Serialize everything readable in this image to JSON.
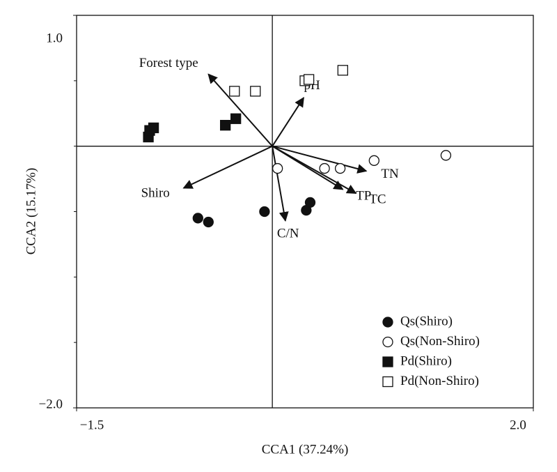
{
  "chart_data": {
    "type": "scatter",
    "x_label": "CCA1 (37.24%)",
    "y_label": "CCA2 (15.17%)",
    "xlim": [
      -1.5,
      2.0
    ],
    "ylim": [
      -2.0,
      1.0
    ],
    "xticks": [
      {
        "value": -1.5,
        "label": "−1.5"
      },
      {
        "value": 2.0,
        "label": "2.0"
      }
    ],
    "yticks": [
      {
        "value": -2.0,
        "label": "−2.0"
      },
      {
        "value": 1.0,
        "label": "1.0"
      }
    ],
    "yminorticks": [
      -1.5,
      -1.0,
      -0.5,
      0,
      0.5
    ],
    "color": "#111111",
    "legend": "lower right",
    "series": [
      {
        "name": "Qs(Shiro)",
        "marker": "circle",
        "filled": true,
        "x": [
          -0.57,
          -0.49,
          -0.06,
          0.26,
          0.29
        ],
        "y": [
          -0.55,
          -0.58,
          -0.5,
          -0.49,
          -0.43
        ]
      },
      {
        "name": "Qs(Non-Shiro)",
        "marker": "circle",
        "filled": false,
        "x": [
          0.04,
          0.4,
          0.52,
          0.78,
          1.33
        ],
        "y": [
          -0.17,
          -0.17,
          -0.17,
          -0.11,
          -0.07
        ]
      },
      {
        "name": "Pd(Shiro)",
        "marker": "square",
        "filled": true,
        "x": [
          -0.95,
          -0.94,
          -0.91,
          -0.36,
          -0.28
        ],
        "y": [
          0.07,
          0.12,
          0.14,
          0.16,
          0.21
        ]
      },
      {
        "name": "Pd(Non-Shiro)",
        "marker": "square",
        "filled": false,
        "x": [
          -0.29,
          -0.13,
          0.25,
          0.28,
          0.54
        ],
        "y": [
          0.42,
          0.42,
          0.5,
          0.51,
          0.58
        ]
      }
    ],
    "vectors": [
      {
        "name": "Forest type",
        "x": -0.49,
        "y": 0.55
      },
      {
        "name": "pH",
        "x": 0.24,
        "y": 0.37
      },
      {
        "name": "TN",
        "x": 0.72,
        "y": -0.19
      },
      {
        "name": "TC",
        "x": 0.64,
        "y": -0.36
      },
      {
        "name": "TP",
        "x": 0.54,
        "y": -0.33
      },
      {
        "name": "C/N",
        "x": 0.1,
        "y": -0.57
      },
      {
        "name": "Shiro",
        "x": -0.68,
        "y": -0.32
      }
    ]
  }
}
